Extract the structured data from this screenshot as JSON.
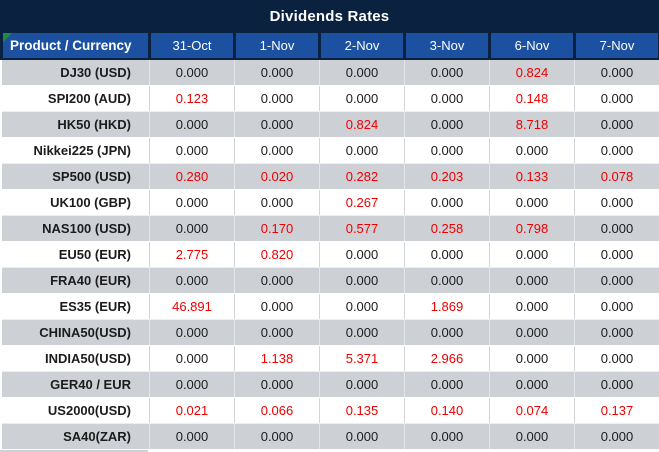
{
  "title": "Dividends Rates",
  "colors": {
    "navy": "#0a2140",
    "header_blue": "#1c51a1",
    "row_gray": "#cdd1d6",
    "row_white": "#ffffff",
    "value_red": "#ee0000",
    "value_black": "#1c1c1c",
    "indicator_green": "#1e8e3e"
  },
  "table": {
    "header": [
      "Product / Currency",
      "31-Oct",
      "1-Nov",
      "2-Nov",
      "3-Nov",
      "6-Nov",
      "7-Nov"
    ],
    "rows": [
      {
        "product": "DJ30 (USD)",
        "values": [
          "0.000",
          "0.000",
          "0.000",
          "0.000",
          "0.824",
          "0.000"
        ]
      },
      {
        "product": "SPI200 (AUD)",
        "values": [
          "0.123",
          "0.000",
          "0.000",
          "0.000",
          "0.148",
          "0.000"
        ]
      },
      {
        "product": "HK50 (HKD)",
        "values": [
          "0.000",
          "0.000",
          "0.824",
          "0.000",
          "8.718",
          "0.000"
        ]
      },
      {
        "product": "Nikkei225 (JPN)",
        "values": [
          "0.000",
          "0.000",
          "0.000",
          "0.000",
          "0.000",
          "0.000"
        ]
      },
      {
        "product": "SP500 (USD)",
        "values": [
          "0.280",
          "0.020",
          "0.282",
          "0.203",
          "0.133",
          "0.078"
        ]
      },
      {
        "product": "UK100 (GBP)",
        "values": [
          "0.000",
          "0.000",
          "0.267",
          "0.000",
          "0.000",
          "0.000"
        ]
      },
      {
        "product": "NAS100 (USD)",
        "values": [
          "0.000",
          "0.170",
          "0.577",
          "0.258",
          "0.798",
          "0.000"
        ]
      },
      {
        "product": "EU50 (EUR)",
        "values": [
          "2.775",
          "0.820",
          "0.000",
          "0.000",
          "0.000",
          "0.000"
        ]
      },
      {
        "product": "FRA40 (EUR)",
        "values": [
          "0.000",
          "0.000",
          "0.000",
          "0.000",
          "0.000",
          "0.000"
        ]
      },
      {
        "product": "ES35 (EUR)",
        "values": [
          "46.891",
          "0.000",
          "0.000",
          "1.869",
          "0.000",
          "0.000"
        ]
      },
      {
        "product": "CHINA50(USD)",
        "values": [
          "0.000",
          "0.000",
          "0.000",
          "0.000",
          "0.000",
          "0.000"
        ]
      },
      {
        "product": "INDIA50(USD)",
        "values": [
          "0.000",
          "1.138",
          "5.371",
          "2.966",
          "0.000",
          "0.000"
        ]
      },
      {
        "product": "GER40 / EUR",
        "values": [
          "0.000",
          "0.000",
          "0.000",
          "0.000",
          "0.000",
          "0.000"
        ]
      },
      {
        "product": "US2000(USD)",
        "values": [
          "0.021",
          "0.066",
          "0.135",
          "0.140",
          "0.074",
          "0.137"
        ]
      },
      {
        "product": "SA40(ZAR)",
        "values": [
          "0.000",
          "0.000",
          "0.000",
          "0.000",
          "0.000",
          "0.000"
        ]
      }
    ]
  }
}
